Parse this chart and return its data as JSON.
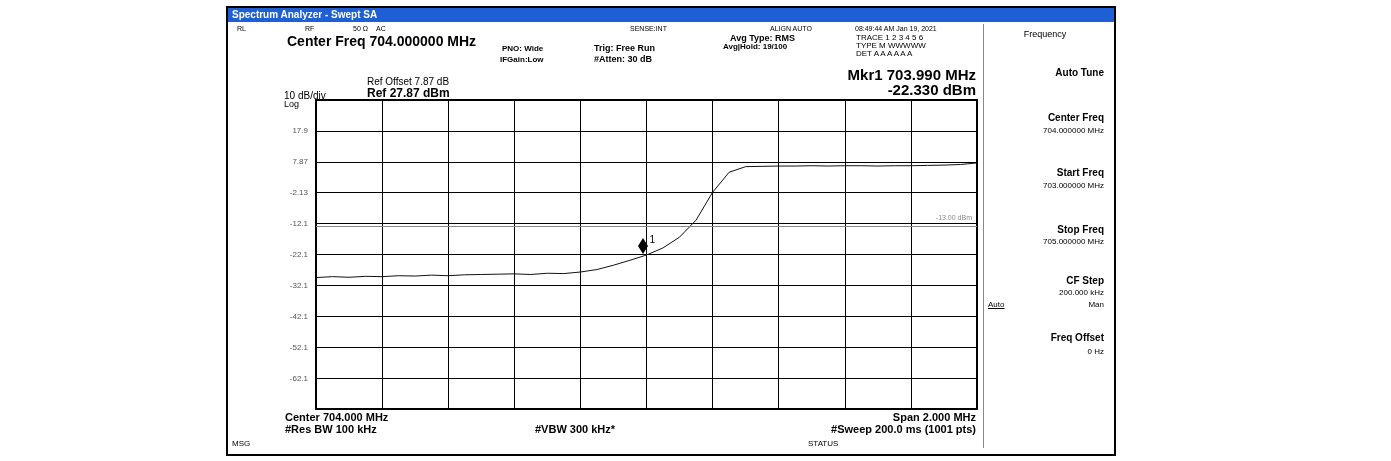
{
  "chart_data": {
    "type": "line",
    "title": "Spectrum Analyzer - Swept SA",
    "categories": [
      null,
      null,
      null,
      null,
      null,
      null,
      null,
      null,
      null,
      null,
      null,
      null,
      null,
      null,
      null,
      null,
      null,
      null,
      null,
      null,
      null,
      null,
      null,
      null,
      null,
      null,
      null,
      null,
      null,
      null,
      null,
      null,
      null,
      null,
      null,
      null,
      null,
      null,
      null,
      null,
      null
    ],
    "ylim": [
      -72.13,
      27.87
    ],
    "yticks": [
      {
        "value": 17.87,
        "label": "17.9"
      },
      {
        "value": 7.87,
        "label": "7.87"
      },
      {
        "value": -2.13,
        "label": "-2.13"
      },
      {
        "value": -12.13,
        "label": "-12.1"
      },
      {
        "value": -22.13,
        "label": "-22.1"
      },
      {
        "value": -32.13,
        "label": "-32.1"
      },
      {
        "value": -42.13,
        "label": "-42.1"
      },
      {
        "value": -52.13,
        "label": "-52.1"
      },
      {
        "value": -62.13,
        "label": "-62.1"
      }
    ],
    "tick_labels": "y",
    "grid": true,
    "marker": "none",
    "line_style": "solid",
    "series": [
      {
        "color": "#111111",
        "values": [
          -29.6,
          -29.3,
          -29.5,
          -29.2,
          -29.3,
          -29.0,
          -29.1,
          -28.8,
          -29.0,
          -28.7,
          -28.6,
          -28.5,
          -28.4,
          -28.6,
          -28.2,
          -28.3,
          -27.8,
          -27.0,
          -25.6,
          -24.0,
          -22.3,
          -20.0,
          -16.5,
          -11.0,
          -2.0,
          4.5,
          6.3,
          6.4,
          6.5,
          6.5,
          6.6,
          6.5,
          6.6,
          6.6,
          6.5,
          6.6,
          6.6,
          6.7,
          6.8,
          7.0,
          7.5
        ]
      }
    ],
    "ref_lines": [
      {
        "axis": "y",
        "value": -13,
        "label": "-13.00 dBm",
        "color": "#888888"
      }
    ],
    "annotations": [
      "RL",
      "RF",
      "50 Ω",
      "AC",
      "SENSE:INT",
      "ALIGN AUTO",
      "08:49:44 AM Jan 19, 2021",
      "Center Freq 704.000000 MHz",
      "PNO: Wide",
      "IFGain:Low",
      "Trig: Free Run",
      "#Atten: 30 dB",
      "Avg Type: RMS",
      "Avg|Hold: 19/100",
      "TRACE 1 2 3 4 5 6",
      "TYPE M WWWWW",
      "DET A A A A A A",
      "Mkr1 703.990 MHz",
      "-22.330 dBm",
      "Ref Offset 7.87 dB",
      "Ref 27.87 dBm",
      "10 dB/div",
      "Log",
      "Center 704.000 MHz",
      "#Res BW 100 kHz",
      "#VBW 300 kHz*",
      "Span 2.000 MHz",
      "#Sweep 200.0 ms (1001 pts)",
      "MSG",
      "STATUS",
      "Frequency",
      "Auto Tune",
      "Center Freq",
      "704.000000 MHz",
      "Start Freq",
      "703.000000 MHz",
      "Stop Freq",
      "705.000000 MHz",
      "CF Step",
      "200.000 kHz",
      "Auto",
      "Man",
      "Freq Offset",
      "0 Hz",
      {
        "text": "1",
        "y": -22.3
      }
    ]
  }
}
